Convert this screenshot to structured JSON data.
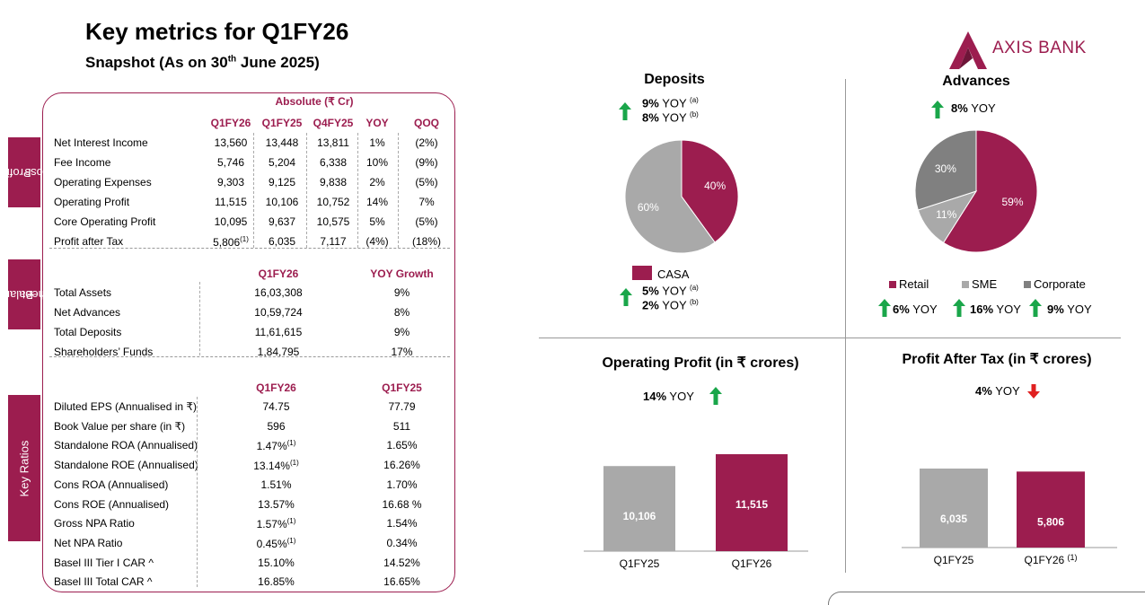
{
  "header": {
    "title": "Key metrics for Q1FY26",
    "subtitle_prefix": "Snapshot (As on 30",
    "subtitle_sup": "th",
    "subtitle_suffix": " June 2025)"
  },
  "logo": {
    "text": "AXIS BANK",
    "color": "#9c1d4f"
  },
  "colors": {
    "accent": "#9c1d4f",
    "grey": "#a9a9a9",
    "dark_grey": "#808080",
    "up": "#1aa64a",
    "down": "#e02020"
  },
  "pnl": {
    "tab_label_1": "Profit &",
    "tab_label_2": "Loss",
    "group_header": "Absolute (₹ Cr)",
    "columns": [
      "Q1FY26",
      "Q1FY25",
      "Q4FY25",
      "YOY",
      "QOQ"
    ],
    "rows": [
      {
        "label": "Net Interest Income",
        "values": [
          "13,560",
          "13,448",
          "13,811",
          "1%",
          "(2%)"
        ]
      },
      {
        "label": "Fee Income",
        "values": [
          "5,746",
          "5,204",
          "6,338",
          "10%",
          "(9%)"
        ]
      },
      {
        "label": "Operating Expenses",
        "values": [
          "9,303",
          "9,125",
          "9,838",
          "2%",
          "(5%)"
        ]
      },
      {
        "label": "Operating Profit",
        "values": [
          "11,515",
          "10,106",
          "10,752",
          "14%",
          "7%"
        ]
      },
      {
        "label": "Core Operating Profit",
        "values": [
          "10,095",
          "9,637",
          "10,575",
          "5%",
          "(5%)"
        ]
      },
      {
        "label": "Profit after Tax",
        "values": [
          "5,806",
          "6,035",
          "7,117",
          "(4%)",
          "(18%)"
        ],
        "note": "(1)"
      }
    ]
  },
  "balance": {
    "tab_label_1": "Balance",
    "tab_label_2": "Sheet",
    "columns": [
      "Q1FY26",
      "YOY Growth"
    ],
    "rows": [
      {
        "label": "Total Assets",
        "values": [
          "16,03,308",
          "9%"
        ]
      },
      {
        "label": "Net Advances",
        "values": [
          "10,59,724",
          "8%"
        ]
      },
      {
        "label": "Total Deposits",
        "values": [
          "11,61,615",
          "9%"
        ]
      },
      {
        "label": "Shareholders’ Funds",
        "values": [
          "1,84,795",
          "17%"
        ]
      }
    ]
  },
  "ratios": {
    "tab_label": "Key Ratios",
    "columns": [
      "Q1FY26",
      "Q1FY25"
    ],
    "rows": [
      {
        "label": "Diluted EPS (Annualised in ₹)",
        "values": [
          "74.75",
          "77.79"
        ],
        "note": ""
      },
      {
        "label": "Book Value per share (in ₹)",
        "values": [
          "596",
          "511"
        ],
        "note": ""
      },
      {
        "label": "Standalone ROA (Annualised)",
        "values": [
          "1.47%",
          "1.65%"
        ],
        "note": "(1)"
      },
      {
        "label": "Standalone ROE (Annualised)",
        "values": [
          "13.14%",
          "16.26%"
        ],
        "note": "(1)"
      },
      {
        "label": "Cons ROA (Annualised)",
        "values": [
          "1.51%",
          "1.70%"
        ],
        "note": ""
      },
      {
        "label": "Cons ROE (Annualised)",
        "values": [
          "13.57%",
          "16.68 %"
        ],
        "note": ""
      },
      {
        "label": "Gross NPA Ratio",
        "values": [
          "1.57%",
          "1.54%"
        ],
        "note": "(1)"
      },
      {
        "label": "Net NPA Ratio",
        "values": [
          "0.45%",
          "0.34%"
        ],
        "note": "(1)"
      },
      {
        "label": "Basel III Tier I CAR ^",
        "values": [
          "15.10%",
          "14.52%"
        ],
        "note": ""
      },
      {
        "label": "Basel III Total CAR ^",
        "values": [
          "16.85%",
          "16.65%"
        ],
        "note": ""
      }
    ]
  },
  "deposits": {
    "title": "Deposits",
    "yoy_a": "9%",
    "yoy_b": "8%",
    "yoy_word": "YOY",
    "mark_a": "(a)",
    "mark_b": "(b)",
    "casa_label": "CASA",
    "casa_yoy_a": "5%",
    "casa_yoy_b": "2%"
  },
  "advances": {
    "title": "Advances",
    "yoy": "8%",
    "yoy_word": "YOY",
    "legend": [
      {
        "name": "Retail",
        "yoy": "6%",
        "color": "#9c1d4f"
      },
      {
        "name": "SME",
        "yoy": "16%",
        "color": "#a9a9a9"
      },
      {
        "name": "Corporate",
        "yoy": "9%",
        "color": "#808080"
      }
    ]
  },
  "op_profit": {
    "title": "Operating Profit (in ₹ crores)",
    "yoy": "14%",
    "yoy_word": "YOY"
  },
  "pat": {
    "title": "Profit After Tax (in ₹ crores)",
    "yoy": "4%",
    "yoy_word": "YOY",
    "note": "(1)"
  },
  "chart_data": [
    {
      "type": "pie",
      "title": "Deposits",
      "labels": [
        "CASA",
        ""
      ],
      "values": [
        40,
        60
      ],
      "colors": [
        "#9c1d4f",
        "#a9a9a9"
      ]
    },
    {
      "type": "pie",
      "title": "Advances",
      "labels": [
        "Retail",
        "SME",
        "Corporate"
      ],
      "values": [
        59,
        11,
        30
      ],
      "colors": [
        "#9c1d4f",
        "#a9a9a9",
        "#808080"
      ]
    },
    {
      "type": "bar",
      "title": "Operating Profit (in ₹ crores)",
      "categories": [
        "Q1FY25",
        "Q1FY26"
      ],
      "values": [
        10106,
        11515
      ],
      "value_labels": [
        "10,106",
        "11,515"
      ],
      "colors": [
        "#a9a9a9",
        "#9c1d4f"
      ]
    },
    {
      "type": "bar",
      "title": "Profit After Tax (in ₹ crores)",
      "categories": [
        "Q1FY25",
        "Q1FY26"
      ],
      "values": [
        6035,
        5806
      ],
      "value_labels": [
        "6,035",
        "5,806"
      ],
      "colors": [
        "#a9a9a9",
        "#9c1d4f"
      ]
    }
  ]
}
